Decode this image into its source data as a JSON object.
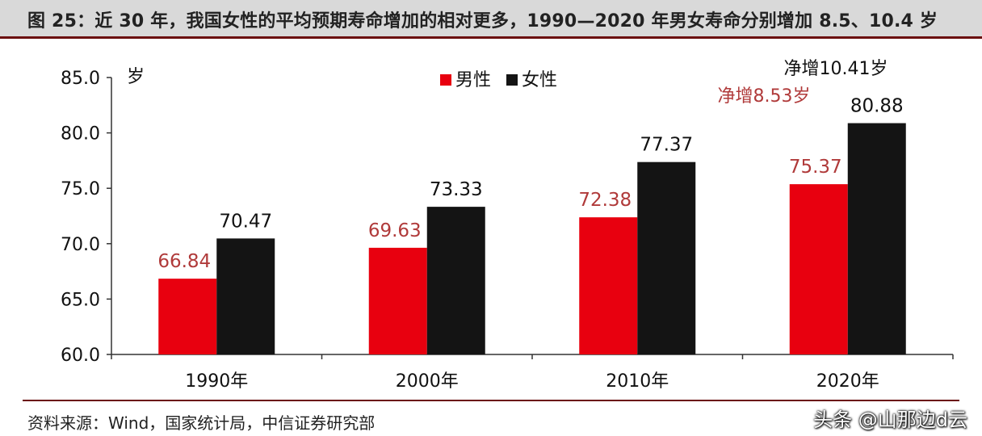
{
  "title": "图 25：近 30 年，我国女性的平均预期寿命增加的相对更多，1990—2020 年男女寿命分别增加 8.5、10.4 岁",
  "source": "资料来源：Wind，国家统计局，中信证券研究部",
  "watermark": "头条 @山那边d云",
  "colors": {
    "male": "#e8000f",
    "female": "#141414",
    "male_label": "#b03a3a",
    "accent": "#6b0f0f"
  },
  "chart_data": {
    "type": "bar",
    "categories": [
      "1990年",
      "2000年",
      "2010年",
      "2020年"
    ],
    "series": [
      {
        "name": "男性",
        "values": [
          66.84,
          69.63,
          72.38,
          75.37
        ]
      },
      {
        "name": "女性",
        "values": [
          70.47,
          73.33,
          77.37,
          80.88
        ]
      }
    ],
    "ylabel": "岁",
    "ylim": [
      60.0,
      85.0
    ],
    "yticks": [
      "60.0",
      "65.0",
      "70.0",
      "75.0",
      "80.0",
      "85.0"
    ],
    "legend_position": "top-center",
    "grid": false,
    "annotations": {
      "male_increase": "净增8.53岁",
      "female_increase": "净增10.41岁"
    }
  }
}
